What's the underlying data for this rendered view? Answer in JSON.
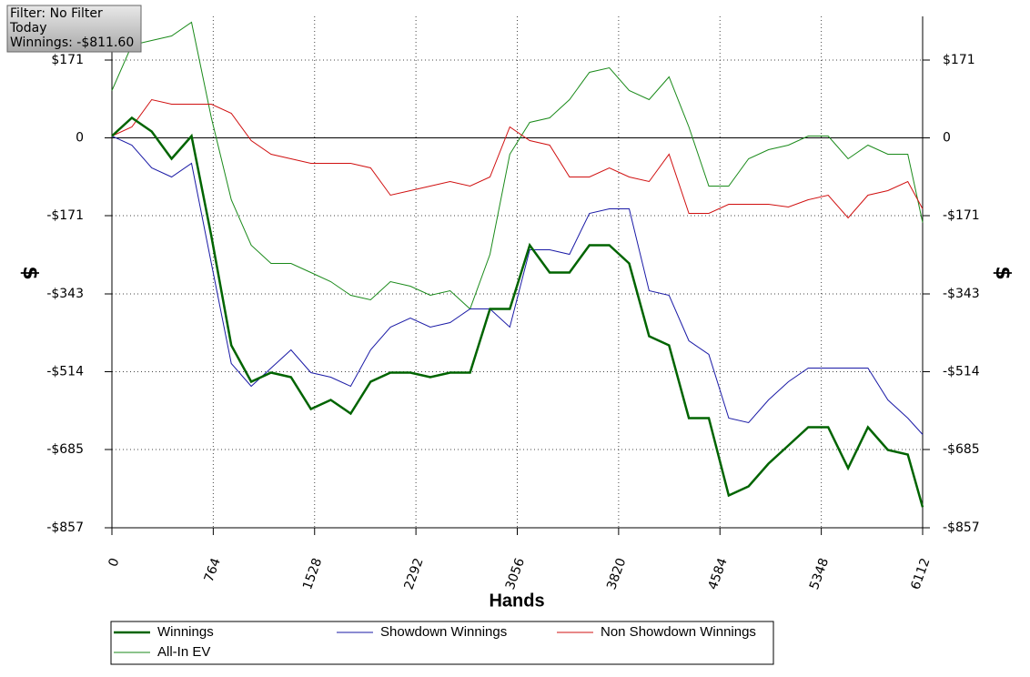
{
  "chart_data": {
    "type": "line",
    "info": [
      "Filter: No Filter",
      "Today",
      "Winnings: -$811.60"
    ],
    "x_label": "Hands",
    "y_label": "$",
    "x": [
      0,
      150,
      300,
      450,
      600,
      750,
      900,
      1050,
      1200,
      1350,
      1500,
      1650,
      1800,
      1950,
      2100,
      2250,
      2400,
      2550,
      2700,
      2850,
      3000,
      3150,
      3300,
      3450,
      3600,
      3750,
      3900,
      4050,
      4200,
      4350,
      4500,
      4650,
      4800,
      4950,
      5100,
      5250,
      5400,
      5550,
      5700,
      5850,
      6000,
      6112
    ],
    "series": [
      {
        "name": "Winnings",
        "color": "#006400",
        "values": [
          4,
          44,
          14,
          -46,
          4,
          -216,
          -456,
          -536,
          -516,
          -526,
          -596,
          -576,
          -606,
          -536,
          -516,
          -516,
          -526,
          -516,
          -516,
          -376,
          -376,
          -236,
          -296,
          -296,
          -236,
          -236,
          -276,
          -436,
          -456,
          -616,
          -616,
          -786,
          -766,
          -716,
          -676,
          -636,
          -636,
          -726,
          -636,
          -686,
          -696,
          -811.6
        ]
      },
      {
        "name": "Showdown Winnings",
        "color": "#1a1aa6",
        "values": [
          4,
          -16,
          -66,
          -86,
          -56,
          -276,
          -496,
          -546,
          -506,
          -466,
          -516,
          -526,
          -546,
          -466,
          -416,
          -396,
          -416,
          -406,
          -376,
          -376,
          -416,
          -246,
          -246,
          -256,
          -166,
          -156,
          -156,
          -336,
          -346,
          -446,
          -476,
          -616,
          -626,
          -576,
          -536,
          -506,
          -506,
          -506,
          -506,
          -576,
          -616,
          -652
        ]
      },
      {
        "name": "Non Showdown Winnings",
        "color": "#d01010",
        "values": [
          4,
          24,
          84,
          74,
          74,
          74,
          54,
          -6,
          -36,
          -46,
          -56,
          -56,
          -56,
          -66,
          -126,
          -116,
          -106,
          -96,
          -106,
          -86,
          24,
          -6,
          -16,
          -86,
          -86,
          -66,
          -86,
          -96,
          -36,
          -166,
          -166,
          -146,
          -146,
          -146,
          -152,
          -136,
          -126,
          -176,
          -126,
          -116,
          -96,
          -156
        ]
      },
      {
        "name": "All-In EV",
        "color": "#1a8a1a",
        "values": [
          104,
          204,
          214,
          224,
          254,
          44,
          -136,
          -236,
          -276,
          -276,
          -296,
          -316,
          -346,
          -356,
          -316,
          -326,
          -346,
          -336,
          -376,
          -256,
          -36,
          34,
          44,
          84,
          144,
          154,
          104,
          84,
          134,
          24,
          -106,
          -106,
          -46,
          -26,
          -16,
          4,
          4,
          -46,
          -16,
          -36,
          -36,
          -186
        ]
      }
    ],
    "xlim": [
      0,
      6112
    ],
    "xticks": [
      0,
      764,
      1528,
      2292,
      3056,
      3820,
      4584,
      5348,
      6112
    ],
    "ylim": [
      -857,
      267
    ],
    "yticks": [
      {
        "value": 171,
        "label": "$171"
      },
      0,
      {
        "value": -171,
        "label": "-$171"
      },
      {
        "value": -343,
        "label": "-$343"
      },
      {
        "value": -514,
        "label": "-$514"
      },
      {
        "value": -685,
        "label": "-$685"
      },
      {
        "value": -857,
        "label": "-$857"
      }
    ],
    "grid": true
  }
}
